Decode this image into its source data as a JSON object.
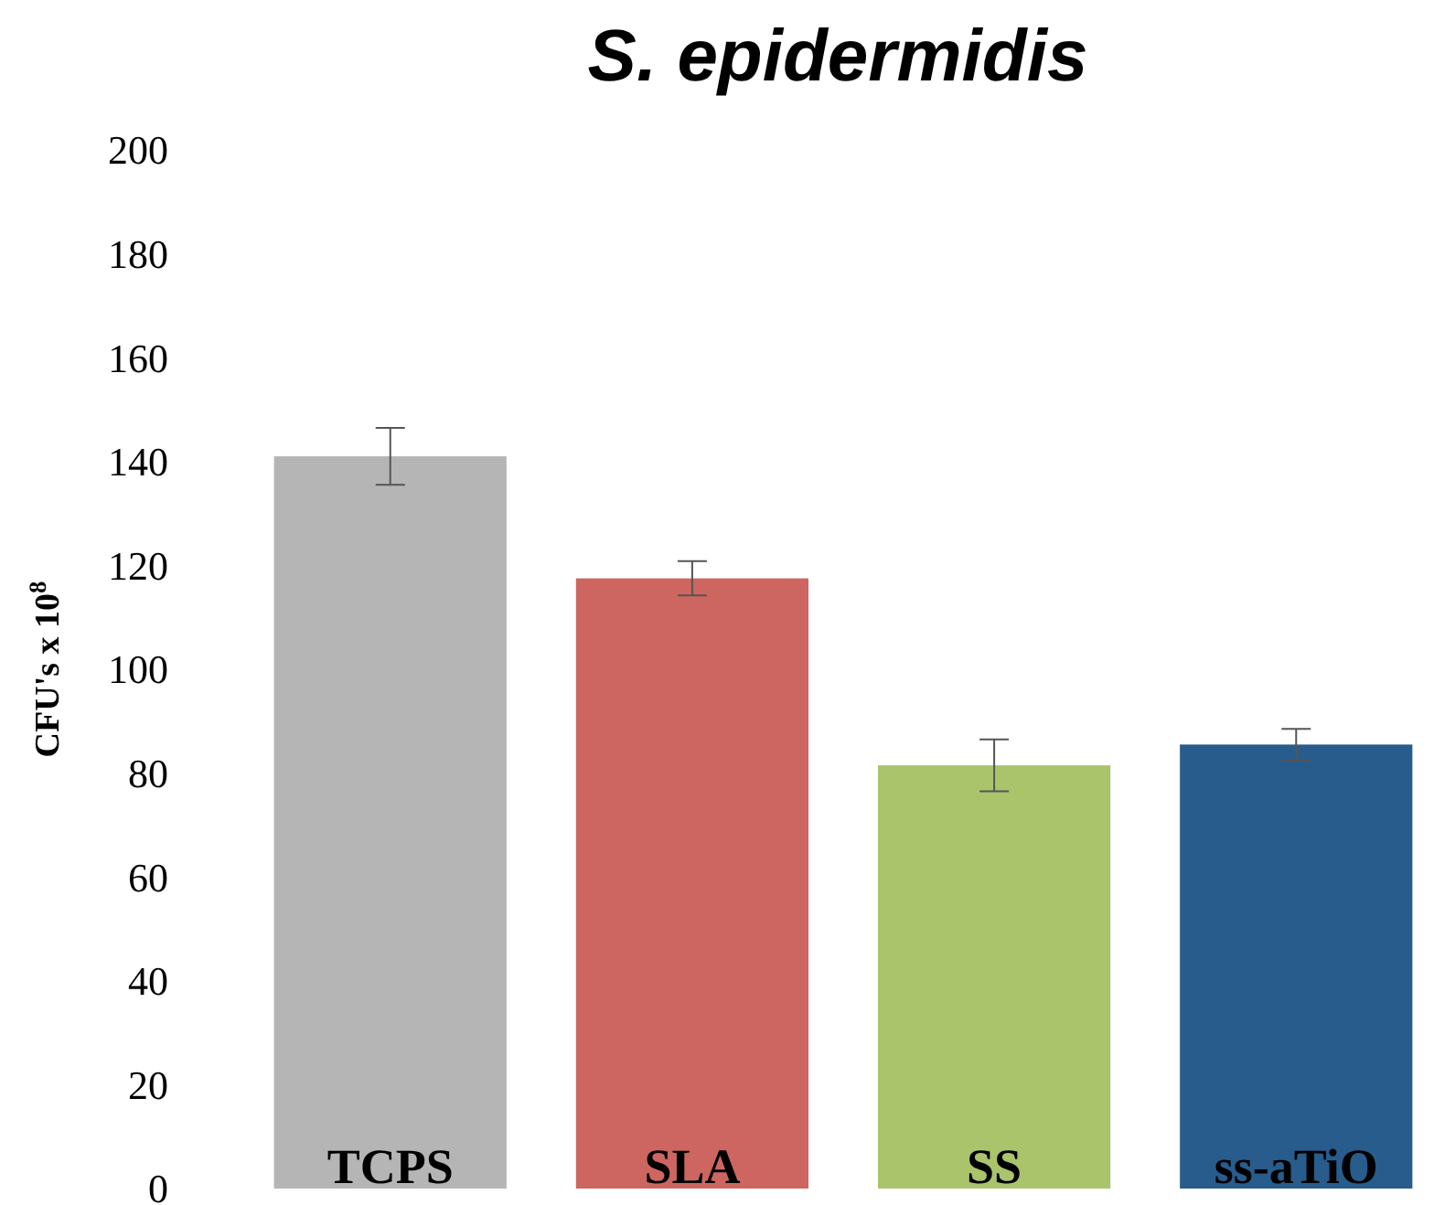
{
  "chart_data": {
    "type": "bar",
    "title": "S. epidermidis",
    "ylabel": "CFU's x 10$^{8}$",
    "categories": [
      "TCPS",
      "SLA",
      "SS",
      "ss-aTiO"
    ],
    "values": [
      141,
      117.5,
      81.5,
      85.5
    ],
    "errors": [
      5.5,
      3.3,
      5,
      3
    ],
    "colors": [
      "#b5b5b5",
      "#cd6660",
      "#aac46c",
      "#285c8c"
    ],
    "ylim": [
      0,
      200
    ],
    "yticks": [
      0,
      20,
      40,
      60,
      80,
      100,
      120,
      140,
      160,
      180,
      200
    ],
    "grid": false
  }
}
